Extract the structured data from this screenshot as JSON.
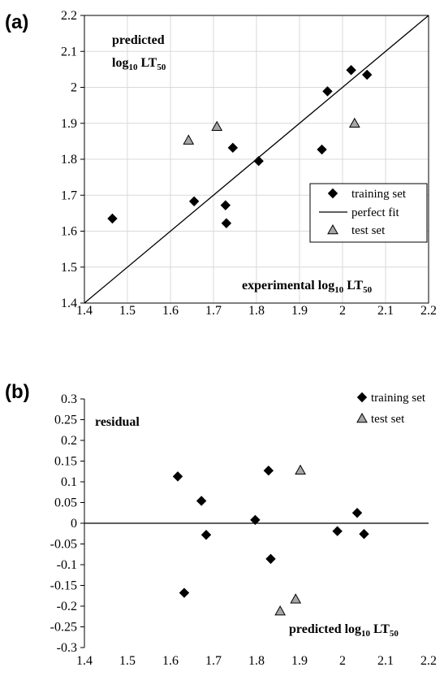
{
  "chart_data": [
    {
      "panel_label": "(a)",
      "type": "scatter",
      "title": "",
      "xlabel": "experimental log10 LT50",
      "ylabel": "predicted log10 LT50",
      "xlabel_parts": {
        "pre": "experimental log",
        "sub1": "10",
        "mid": " LT",
        "sub2": "50"
      },
      "ylabel_line1": "predicted",
      "ylabel_line2_parts": {
        "pre": "log",
        "sub1": "10",
        "mid": " LT",
        "sub2": "50"
      },
      "xlim": [
        1.4,
        2.2
      ],
      "ylim": [
        1.4,
        2.2
      ],
      "xticks": [
        "1.4",
        "1.5",
        "1.6",
        "1.7",
        "1.8",
        "1.9",
        "2",
        "2.1",
        "2.2"
      ],
      "yticks": [
        "1.4",
        "1.5",
        "1.6",
        "1.7",
        "1.8",
        "1.9",
        "2",
        "2.1",
        "2.2"
      ],
      "grid": true,
      "legend_position": "right",
      "series": [
        {
          "name": "training set",
          "marker": "diamond",
          "color": "#000000",
          "points": [
            {
              "x": 1.465,
              "y": 1.635
            },
            {
              "x": 1.655,
              "y": 1.683
            },
            {
              "x": 1.728,
              "y": 1.672
            },
            {
              "x": 1.73,
              "y": 1.622
            },
            {
              "x": 1.745,
              "y": 1.832
            },
            {
              "x": 1.805,
              "y": 1.795
            },
            {
              "x": 1.952,
              "y": 1.827
            },
            {
              "x": 1.965,
              "y": 1.989
            },
            {
              "x": 2.02,
              "y": 2.048
            },
            {
              "x": 2.057,
              "y": 2.035
            }
          ]
        },
        {
          "name": "perfect fit",
          "marker": "line",
          "color": "#000000",
          "points": [
            {
              "x": 1.4,
              "y": 1.4
            },
            {
              "x": 2.2,
              "y": 2.2
            }
          ]
        },
        {
          "name": "test set",
          "marker": "triangle",
          "color": "#a6a6a6",
          "points": [
            {
              "x": 1.642,
              "y": 1.853
            },
            {
              "x": 1.708,
              "y": 1.891
            },
            {
              "x": 2.028,
              "y": 1.9
            }
          ]
        }
      ]
    },
    {
      "panel_label": "(b)",
      "type": "scatter",
      "title": "",
      "xlabel": "predicted log10 LT50",
      "ylabel": "residual",
      "xlabel_parts": {
        "pre": "predicted log",
        "sub1": "10",
        "mid": " LT",
        "sub2": "50"
      },
      "xlim": [
        1.4,
        2.2
      ],
      "ylim": [
        -0.3,
        0.3
      ],
      "xticks": [
        "1.4",
        "1.5",
        "1.6",
        "1.7",
        "1.8",
        "1.9",
        "2",
        "2.1",
        "2.2"
      ],
      "yticks": [
        "0.3",
        "0.25",
        "0.2",
        "0.15",
        "0.1",
        "0.05",
        "0",
        "-0.05",
        "-0.1",
        "-0.15",
        "-0.2",
        "-0.25",
        "-0.3"
      ],
      "grid": false,
      "zero_line": true,
      "legend_position": "top-right",
      "series": [
        {
          "name": "training set",
          "marker": "diamond",
          "color": "#000000",
          "points": [
            {
              "x": 1.617,
              "y": 0.113
            },
            {
              "x": 1.632,
              "y": -0.168
            },
            {
              "x": 1.672,
              "y": 0.054
            },
            {
              "x": 1.683,
              "y": -0.028
            },
            {
              "x": 1.797,
              "y": 0.008
            },
            {
              "x": 1.828,
              "y": 0.127
            },
            {
              "x": 1.833,
              "y": -0.086
            },
            {
              "x": 1.988,
              "y": -0.019
            },
            {
              "x": 2.034,
              "y": 0.025
            },
            {
              "x": 2.05,
              "y": -0.026
            }
          ]
        },
        {
          "name": "test set",
          "marker": "triangle",
          "color": "#a6a6a6",
          "points": [
            {
              "x": 1.855,
              "y": -0.212
            },
            {
              "x": 1.891,
              "y": -0.183
            },
            {
              "x": 1.902,
              "y": 0.128
            }
          ]
        }
      ]
    }
  ]
}
